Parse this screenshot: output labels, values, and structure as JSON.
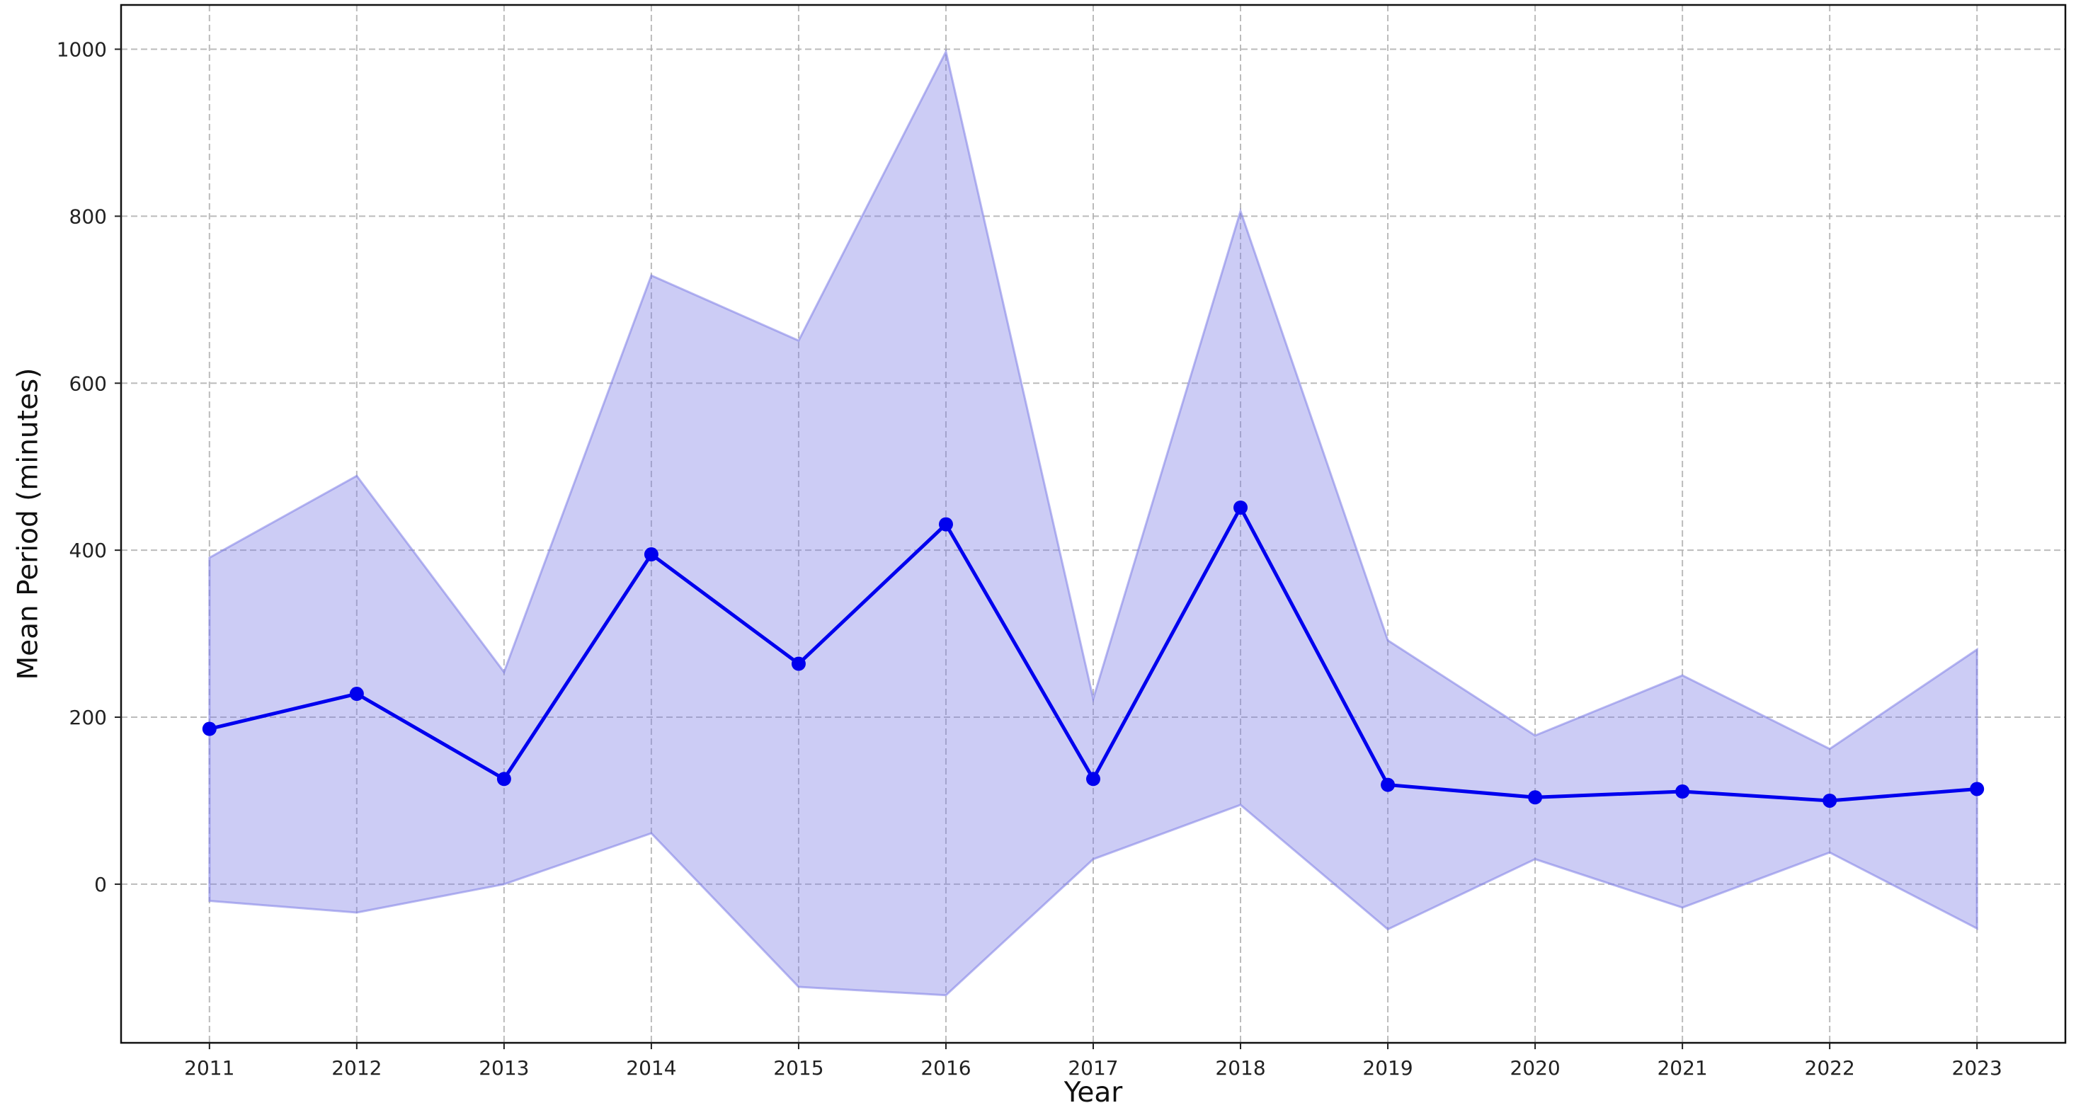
{
  "chart_data": {
    "type": "line",
    "title": "",
    "xlabel": "Year",
    "ylabel": "Mean Period (minutes)",
    "x": [
      2011,
      2012,
      2013,
      2014,
      2015,
      2016,
      2017,
      2018,
      2019,
      2020,
      2021,
      2022,
      2023
    ],
    "x_tick_labels": [
      "2011",
      "2012",
      "2013",
      "2014",
      "2015",
      "2016",
      "2017",
      "2018",
      "2019",
      "2020",
      "2021",
      "2022",
      "2023"
    ],
    "y_ticks": [
      0,
      200,
      400,
      600,
      800,
      1000
    ],
    "y_tick_labels": [
      "0",
      "200",
      "400",
      "600",
      "800",
      "1000"
    ],
    "xlim": [
      2010.4,
      2023.6
    ],
    "ylim": [
      -190,
      1053
    ],
    "grid": true,
    "legend": false,
    "series": [
      {
        "values": [
          186,
          228,
          126,
          395,
          264,
          431,
          126,
          451,
          119,
          104,
          111,
          100,
          114
        ],
        "color": "#0000ee",
        "marker": "circle",
        "band_upper": [
          391,
          489,
          254,
          729,
          651,
          997,
          222,
          806,
          292,
          178,
          250,
          162,
          281
        ],
        "band_lower": [
          -20,
          -34,
          0,
          61,
          -123,
          -133,
          30,
          95,
          -54,
          30,
          -28,
          38,
          -53
        ],
        "band_color": "#8080e6"
      }
    ]
  }
}
